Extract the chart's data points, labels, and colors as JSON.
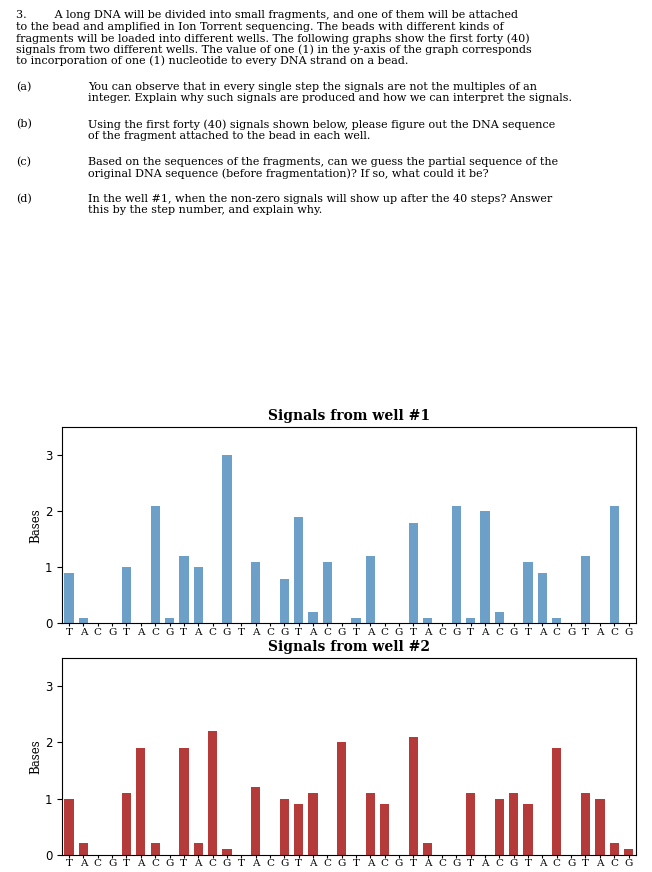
{
  "para_lines": [
    "3.        A long DNA will be divided into small fragments, and one of them will be attached",
    "to the bead and amplified in Ion Torrent sequencing. The beads with different kinds of",
    "fragments will be loaded into different wells. The following graphs show the first forty (40)",
    "signals from two different wells. The value of one (1) in the y-axis of the graph corresponds",
    "to incorporation of one (1) nucleotide to every DNA strand on a bead."
  ],
  "qa": [
    {
      "label": "(a)",
      "indent": "        ",
      "lines": [
        "You can observe that in every single step the signals are not the multiples of an",
        "integer. Explain why such signals are produced and how we can interpret the signals."
      ]
    },
    {
      "label": "(b)",
      "indent": "        ",
      "lines": [
        "Using the first forty (40) signals shown below, please figure out the DNA sequence",
        "of the fragment attached to the bead in each well."
      ]
    },
    {
      "label": "(c)",
      "indent": "        ",
      "lines": [
        "Based on the sequences of the fragments, can we guess the partial sequence of the",
        "original DNA sequence (before fragmentation)? If so, what could it be?"
      ]
    },
    {
      "label": "(d)",
      "indent": "        ",
      "lines": [
        "In the well #1, when the non-zero signals will show up after the 40 steps? Answer",
        "this by the step number, and explain why."
      ]
    }
  ],
  "well1_title": "Signals from well #1",
  "well2_title": "Signals from well #2",
  "xlabel_pattern": [
    "T",
    "A",
    "C",
    "G",
    "T",
    "A",
    "C",
    "G",
    "T",
    "A",
    "C",
    "G",
    "T",
    "A",
    "C",
    "G",
    "T",
    "A",
    "C",
    "G",
    "T",
    "A",
    "C",
    "G",
    "T",
    "A",
    "C",
    "G",
    "T",
    "A",
    "C",
    "G",
    "T",
    "A",
    "C",
    "G",
    "T",
    "A",
    "C",
    "G"
  ],
  "well1_values": [
    0.9,
    0.1,
    0.0,
    0.0,
    1.0,
    0.0,
    2.1,
    0.1,
    1.2,
    1.0,
    0.0,
    3.0,
    0.0,
    1.1,
    0.0,
    0.8,
    1.9,
    0.2,
    1.1,
    0.0,
    0.1,
    1.2,
    0.0,
    0.0,
    1.8,
    0.1,
    0.0,
    2.1,
    0.1,
    2.0,
    0.2,
    0.0,
    1.1,
    0.9,
    0.1,
    0.0,
    1.2,
    0.0,
    2.1,
    0.0
  ],
  "well2_values": [
    1.0,
    0.2,
    0.0,
    0.0,
    1.1,
    1.9,
    0.2,
    0.0,
    1.9,
    0.2,
    2.2,
    0.1,
    0.0,
    1.2,
    0.0,
    1.0,
    0.9,
    1.1,
    0.0,
    2.0,
    0.0,
    1.1,
    0.9,
    0.0,
    2.1,
    0.2,
    0.0,
    0.0,
    1.1,
    0.0,
    1.0,
    1.1,
    0.9,
    0.0,
    1.9,
    0.0,
    1.1,
    1.0,
    0.2,
    0.1
  ],
  "well1_color": "#6CA0C8",
  "well2_color": "#B53A3A",
  "ylabel": "Bases",
  "ylim": [
    0,
    3.5
  ],
  "yticks": [
    0,
    1,
    2,
    3
  ],
  "font_size_text": 8.0,
  "font_size_title": 10.0,
  "font_size_axis": 7.5,
  "font_size_ylabel": 8.5,
  "font_family": "DejaVu Serif"
}
